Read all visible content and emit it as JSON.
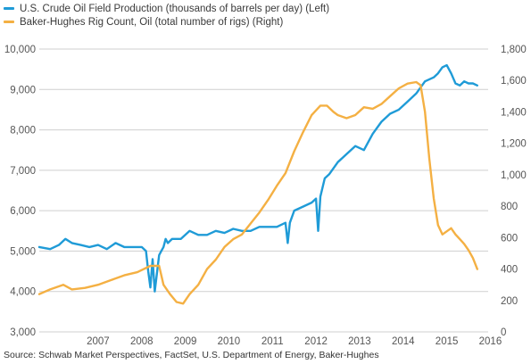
{
  "chart_data": {
    "type": "line",
    "legend": [
      {
        "label": "U.S. Crude Oil Field Production (thousands of barrels per day) (Left)",
        "color": "#1f9bd7"
      },
      {
        "label": "Baker-Hughes Rig Count, Oil (total number of rigs)  (Right)",
        "color": "#f4b043"
      }
    ],
    "x_ticks": [
      "2007",
      "2008",
      "2009",
      "2010",
      "2011",
      "2012",
      "2013",
      "2014",
      "2015",
      "2016"
    ],
    "x_range": [
      2006.15,
      2016.45
    ],
    "y_left": {
      "ticks": [
        "3,000",
        "4,000",
        "5,000",
        "6,000",
        "7,000",
        "8,000",
        "9,000",
        "10,000"
      ],
      "range": [
        3000,
        10000
      ]
    },
    "y_right": {
      "ticks": [
        "0",
        "200",
        "400",
        "600",
        "800",
        "1,000",
        "1,200",
        "1,400",
        "1,600",
        "1,800"
      ],
      "range": [
        0,
        1800
      ]
    },
    "grid": "horizontal",
    "legend_position": "top-left",
    "series": [
      {
        "name": "U.S. Crude Oil Field Production (thousands of barrels per day) (Left)",
        "axis": "left",
        "color": "#1f9bd7",
        "x": [
          2006.15,
          2006.4,
          2006.6,
          2006.75,
          2006.9,
          2007.1,
          2007.3,
          2007.5,
          2007.7,
          2007.9,
          2008.1,
          2008.3,
          2008.5,
          2008.6,
          2008.65,
          2008.7,
          2008.75,
          2008.8,
          2008.9,
          2008.95,
          2009.0,
          2009.05,
          2009.1,
          2009.2,
          2009.4,
          2009.6,
          2009.8,
          2010.0,
          2010.2,
          2010.4,
          2010.6,
          2010.8,
          2011.0,
          2011.2,
          2011.4,
          2011.6,
          2011.8,
          2011.85,
          2011.9,
          2012.0,
          2012.2,
          2012.4,
          2012.5,
          2012.55,
          2012.6,
          2012.7,
          2012.8,
          2013.0,
          2013.2,
          2013.4,
          2013.6,
          2013.8,
          2014.0,
          2014.2,
          2014.4,
          2014.6,
          2014.8,
          2015.0,
          2015.2,
          2015.3,
          2015.4,
          2015.5,
          2015.6,
          2015.7,
          2015.8,
          2015.9,
          2016.0,
          2016.1,
          2016.2
        ],
        "y": [
          5100,
          5050,
          5150,
          5300,
          5200,
          5150,
          5100,
          5150,
          5050,
          5200,
          5100,
          5100,
          5100,
          5000,
          4500,
          4100,
          4800,
          4000,
          4900,
          5000,
          5100,
          5300,
          5200,
          5300,
          5300,
          5500,
          5400,
          5400,
          5500,
          5450,
          5550,
          5500,
          5500,
          5600,
          5600,
          5600,
          5700,
          5200,
          5700,
          6000,
          6100,
          6200,
          6300,
          5500,
          6350,
          6800,
          6900,
          7200,
          7400,
          7600,
          7500,
          7900,
          8200,
          8400,
          8500,
          8700,
          8900,
          9200,
          9300,
          9400,
          9550,
          9600,
          9400,
          9150,
          9100,
          9200,
          9150,
          9150,
          9100
        ]
      },
      {
        "name": "Baker-Hughes Rig Count, Oil (total number of rigs)  (Right)",
        "axis": "right",
        "color": "#f4b043",
        "x": [
          2006.15,
          2006.4,
          2006.7,
          2006.9,
          2007.2,
          2007.5,
          2007.8,
          2008.1,
          2008.4,
          2008.7,
          2008.9,
          2009.0,
          2009.15,
          2009.3,
          2009.45,
          2009.6,
          2009.8,
          2010.0,
          2010.2,
          2010.4,
          2010.6,
          2010.8,
          2011.0,
          2011.2,
          2011.4,
          2011.6,
          2011.8,
          2012.0,
          2012.2,
          2012.4,
          2012.6,
          2012.75,
          2012.9,
          2013.0,
          2013.2,
          2013.4,
          2013.6,
          2013.8,
          2014.0,
          2014.2,
          2014.4,
          2014.6,
          2014.8,
          2014.9,
          2015.0,
          2015.1,
          2015.2,
          2015.3,
          2015.4,
          2015.5,
          2015.6,
          2015.7,
          2015.8,
          2015.9,
          2016.0,
          2016.1,
          2016.2
        ],
        "y": [
          240,
          270,
          300,
          270,
          280,
          300,
          330,
          360,
          380,
          420,
          420,
          300,
          240,
          190,
          180,
          240,
          300,
          400,
          460,
          540,
          590,
          620,
          690,
          760,
          840,
          930,
          1010,
          1150,
          1270,
          1380,
          1440,
          1440,
          1400,
          1380,
          1360,
          1380,
          1430,
          1420,
          1450,
          1500,
          1550,
          1580,
          1590,
          1570,
          1400,
          1100,
          850,
          680,
          620,
          640,
          660,
          620,
          590,
          560,
          520,
          470,
          400
        ]
      }
    ]
  },
  "source_text": "Source: Schwab Market Perspectives, FactSet, U.S. Department of Energy, Baker-Hughes"
}
